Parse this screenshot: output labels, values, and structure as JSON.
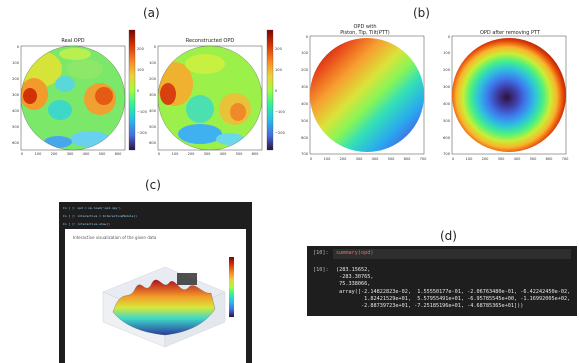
{
  "panels": {
    "a": {
      "label": "(a)",
      "subplots": [
        {
          "title": "Real OPD",
          "pattern": "noisy"
        },
        {
          "title": "Reconstructed OPD",
          "pattern": "smooth"
        }
      ],
      "axis_ticks_y": [
        "0",
        "100",
        "200",
        "300",
        "400",
        "500",
        "600"
      ],
      "axis_ticks_x": [
        "0",
        "100",
        "200",
        "300",
        "400",
        "500",
        "600"
      ],
      "colorbar_ticks": [
        "200",
        "100",
        "0",
        "−100",
        "−200"
      ]
    },
    "b": {
      "label": "(b)",
      "subplots": [
        {
          "title_line1": "OPD with",
          "title_line2": "Piston, Tip, Tilt(PTT)",
          "pattern": "tilt"
        },
        {
          "title": "OPD after removing PTT",
          "pattern": "bowl"
        }
      ],
      "axis_ticks_y": [
        "0",
        "100",
        "200",
        "300",
        "400",
        "500",
        "600",
        "700"
      ],
      "axis_ticks_x": [
        "0",
        "100",
        "200",
        "300",
        "400",
        "500",
        "600",
        "700"
      ]
    },
    "c": {
      "label": "(c)",
      "code_lines": [
        "In [ ]:  opd = np.load('opd.npy')",
        "In [ ]:  interactive = InteractiveModule()",
        "In [ ]:  interactive.show()"
      ],
      "plot_title": "Interactive visualization of the given data"
    },
    "d": {
      "label": "(d)",
      "input_prompt": "[10]:",
      "input_code": "summary(opd)",
      "output_prompt": "[10]:",
      "output_lines": [
        "(283.15652,",
        " -283.30765,",
        " 75.338066,",
        " array([-2.14822823e-02,  1.55550177e-01, -2.06763480e-01, -6.42242450e-02,",
        "         1.82421529e+01,  5.57955491e+01, -6.95785545e+00, -1.16992005e+02,",
        "        -2.88739723e+01, -7.25185196e+01, -4.68785365e+01]))"
      ]
    }
  },
  "chart_data": [
    {
      "type": "heatmap",
      "title": "Real OPD",
      "xlim": [
        0,
        650
      ],
      "ylim": [
        650,
        0
      ],
      "colorbar": [
        -283.3,
        283.2
      ]
    },
    {
      "type": "heatmap",
      "title": "Reconstructed OPD",
      "xlim": [
        0,
        650
      ],
      "ylim": [
        650,
        0
      ],
      "colorbar": [
        -283.3,
        283.2
      ]
    },
    {
      "type": "heatmap",
      "title": "OPD with Piston, Tip, Tilt(PTT)",
      "xlim": [
        0,
        700
      ],
      "ylim": [
        700,
        0
      ]
    },
    {
      "type": "heatmap",
      "title": "OPD after removing PTT",
      "xlim": [
        0,
        700
      ],
      "ylim": [
        700,
        0
      ]
    }
  ]
}
